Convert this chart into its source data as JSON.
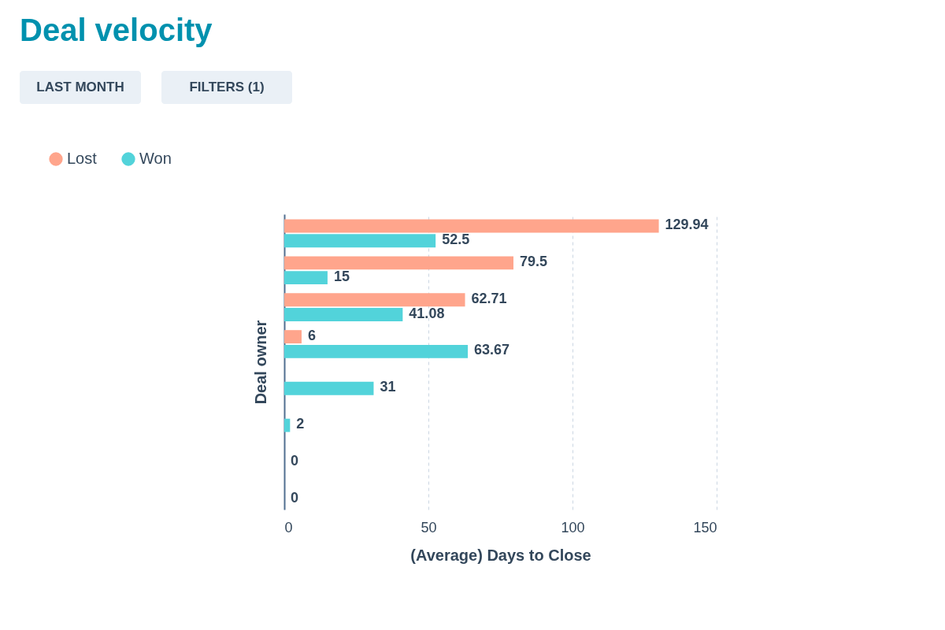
{
  "chart_data": {
    "type": "bar",
    "orientation": "horizontal",
    "title": "Deal velocity",
    "annotations": [
      "LAST MONTH",
      "FILTERS (1)"
    ],
    "categories": [
      null,
      null,
      null,
      null,
      null,
      null,
      null,
      null
    ],
    "series": [
      {
        "name": "Lost",
        "color": "#ffa58c",
        "values": [
          129.94,
          79.5,
          62.71,
          6,
          null,
          null,
          null,
          null
        ]
      },
      {
        "name": "Won",
        "color": "#52d3da",
        "values": [
          52.5,
          15,
          41.08,
          63.67,
          31,
          2,
          0,
          0
        ]
      }
    ],
    "xlabel": "(Average) Days to Close",
    "ylabel": "Deal owner",
    "xlim": [
      0,
      150
    ],
    "xticks": [
      0,
      50,
      100,
      150
    ],
    "grid": "x",
    "legend": "top left",
    "data_labels": true,
    "tick_labels": "x"
  }
}
